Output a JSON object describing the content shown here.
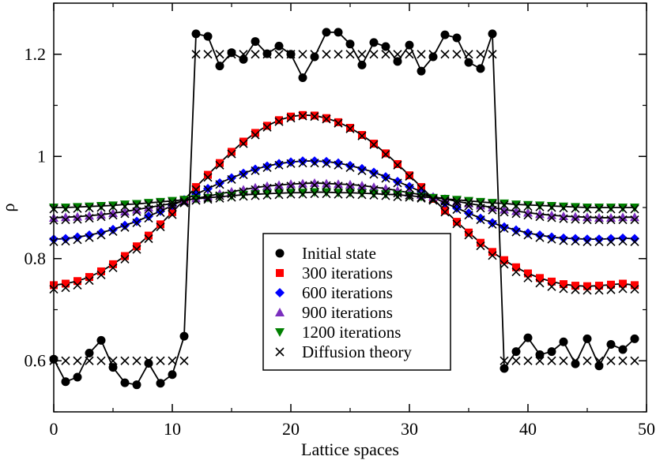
{
  "chart_data": {
    "type": "line",
    "title": "",
    "xlabel": "Lattice spaces",
    "ylabel": "ρ",
    "xlim": [
      0,
      50
    ],
    "ylim": [
      0.5,
      1.3
    ],
    "xticks": [
      0,
      10,
      20,
      30,
      40,
      50
    ],
    "xtick_labels": [
      "0",
      "10",
      "20",
      "30",
      "40",
      "50"
    ],
    "yticks": [
      0.6,
      0.8,
      1.0,
      1.2
    ],
    "ytick_labels": [
      "0.6",
      "0.8",
      "1",
      "1.2"
    ],
    "grid": false,
    "legend_position": "center-bottom",
    "x": [
      0,
      1,
      2,
      3,
      4,
      5,
      6,
      7,
      8,
      9,
      10,
      11,
      12,
      13,
      14,
      15,
      16,
      17,
      18,
      19,
      20,
      21,
      22,
      23,
      24,
      25,
      26,
      27,
      28,
      29,
      30,
      31,
      32,
      33,
      34,
      35,
      36,
      37,
      38,
      39,
      40,
      41,
      42,
      43,
      44,
      45,
      46,
      47,
      48,
      49
    ],
    "series": [
      {
        "name": "Initial state",
        "marker": "circle",
        "color": "#000000",
        "line": true,
        "values": [
          0.603,
          0.559,
          0.568,
          0.615,
          0.64,
          0.587,
          0.557,
          0.553,
          0.595,
          0.556,
          0.573,
          0.648,
          1.24,
          1.235,
          1.177,
          1.203,
          1.19,
          1.225,
          1.201,
          1.216,
          1.2,
          1.154,
          1.195,
          1.243,
          1.243,
          1.22,
          1.179,
          1.223,
          1.215,
          1.186,
          1.218,
          1.167,
          1.195,
          1.238,
          1.232,
          1.184,
          1.172,
          1.24,
          0.585,
          0.618,
          0.645,
          0.612,
          0.618,
          0.637,
          0.594,
          0.643,
          0.59,
          0.632,
          0.622,
          0.643
        ]
      },
      {
        "name": "300 iterations",
        "marker": "square",
        "color": "#ff0000",
        "line": true,
        "values": [
          0.748,
          0.751,
          0.756,
          0.764,
          0.775,
          0.789,
          0.805,
          0.824,
          0.845,
          0.867,
          0.891,
          0.915,
          0.94,
          0.964,
          0.987,
          1.009,
          1.029,
          1.046,
          1.06,
          1.071,
          1.078,
          1.081,
          1.08,
          1.075,
          1.067,
          1.056,
          1.042,
          1.025,
          1.006,
          0.985,
          0.963,
          0.94,
          0.917,
          0.894,
          0.872,
          0.851,
          0.831,
          0.813,
          0.797,
          0.783,
          0.771,
          0.762,
          0.755,
          0.75,
          0.747,
          0.746,
          0.747,
          0.749,
          0.751,
          0.748
        ]
      },
      {
        "name": "600 iterations",
        "marker": "diamond",
        "color": "#0000ff",
        "line": true,
        "values": [
          0.838,
          0.839,
          0.842,
          0.846,
          0.851,
          0.857,
          0.865,
          0.873,
          0.883,
          0.893,
          0.904,
          0.915,
          0.926,
          0.937,
          0.948,
          0.958,
          0.967,
          0.975,
          0.981,
          0.986,
          0.989,
          0.991,
          0.991,
          0.99,
          0.987,
          0.982,
          0.976,
          0.969,
          0.96,
          0.951,
          0.941,
          0.931,
          0.92,
          0.909,
          0.899,
          0.889,
          0.879,
          0.87,
          0.862,
          0.856,
          0.85,
          0.846,
          0.842,
          0.84,
          0.839,
          0.838,
          0.838,
          0.839,
          0.84,
          0.839
        ]
      },
      {
        "name": "900 iterations",
        "marker": "triangle-up",
        "color": "#7b2fbe",
        "line": true,
        "values": [
          0.88,
          0.881,
          0.882,
          0.884,
          0.886,
          0.889,
          0.892,
          0.896,
          0.9,
          0.904,
          0.908,
          0.913,
          0.918,
          0.922,
          0.927,
          0.931,
          0.935,
          0.939,
          0.942,
          0.944,
          0.946,
          0.947,
          0.948,
          0.947,
          0.946,
          0.945,
          0.943,
          0.94,
          0.937,
          0.933,
          0.929,
          0.925,
          0.921,
          0.917,
          0.912,
          0.908,
          0.904,
          0.9,
          0.896,
          0.893,
          0.89,
          0.887,
          0.885,
          0.883,
          0.882,
          0.881,
          0.88,
          0.88,
          0.881,
          0.881
        ]
      },
      {
        "name": "1200 iterations",
        "marker": "triangle-down",
        "color": "#008000",
        "line": true,
        "values": [
          0.9,
          0.9,
          0.901,
          0.902,
          0.903,
          0.904,
          0.906,
          0.907,
          0.909,
          0.911,
          0.913,
          0.915,
          0.917,
          0.919,
          0.921,
          0.923,
          0.925,
          0.926,
          0.927,
          0.928,
          0.929,
          0.929,
          0.93,
          0.93,
          0.929,
          0.929,
          0.928,
          0.927,
          0.926,
          0.925,
          0.923,
          0.921,
          0.919,
          0.917,
          0.915,
          0.913,
          0.911,
          0.909,
          0.908,
          0.906,
          0.905,
          0.904,
          0.903,
          0.902,
          0.901,
          0.9,
          0.9,
          0.9,
          0.9,
          0.9
        ]
      },
      {
        "name": "Diffusion theory",
        "marker": "x",
        "color": "#000000",
        "line": false,
        "values": [
          0.6,
          0.6,
          0.6,
          0.6,
          0.6,
          0.6,
          0.6,
          0.6,
          0.6,
          0.6,
          0.6,
          0.6,
          1.2,
          1.2,
          1.2,
          1.2,
          1.2,
          1.2,
          1.2,
          1.2,
          1.2,
          1.2,
          1.2,
          1.2,
          1.2,
          1.2,
          1.2,
          1.2,
          1.2,
          1.2,
          1.2,
          1.2,
          1.2,
          1.2,
          1.2,
          1.2,
          1.2,
          1.2,
          0.6,
          0.6,
          0.6,
          0.6,
          0.6,
          0.6,
          0.6,
          0.6,
          0.6,
          0.6,
          0.6,
          0.6
        ],
        "extra_curves": [
          [
            0.74,
            0.743,
            0.748,
            0.757,
            0.768,
            0.782,
            0.799,
            0.818,
            0.839,
            0.862,
            0.886,
            0.91,
            0.935,
            0.959,
            0.983,
            1.005,
            1.025,
            1.042,
            1.057,
            1.068,
            1.075,
            1.079,
            1.078,
            1.073,
            1.065,
            1.054,
            1.04,
            1.023,
            1.004,
            0.983,
            0.961,
            0.938,
            0.914,
            0.891,
            0.868,
            0.846,
            0.825,
            0.806,
            0.789,
            0.774,
            0.762,
            0.752,
            0.745,
            0.741,
            0.739,
            0.738,
            0.738,
            0.739,
            0.741,
            0.74
          ],
          [
            0.833,
            0.834,
            0.837,
            0.841,
            0.846,
            0.853,
            0.861,
            0.87,
            0.879,
            0.89,
            0.901,
            0.912,
            0.924,
            0.935,
            0.945,
            0.955,
            0.964,
            0.972,
            0.978,
            0.983,
            0.986,
            0.987,
            0.987,
            0.986,
            0.983,
            0.978,
            0.972,
            0.965,
            0.957,
            0.948,
            0.938,
            0.927,
            0.917,
            0.906,
            0.896,
            0.885,
            0.876,
            0.867,
            0.859,
            0.852,
            0.846,
            0.841,
            0.838,
            0.835,
            0.834,
            0.833,
            0.833,
            0.833,
            0.834,
            0.833
          ],
          [
            0.875,
            0.876,
            0.877,
            0.879,
            0.882,
            0.885,
            0.888,
            0.892,
            0.896,
            0.9,
            0.905,
            0.909,
            0.914,
            0.919,
            0.923,
            0.927,
            0.931,
            0.935,
            0.938,
            0.94,
            0.942,
            0.943,
            0.944,
            0.943,
            0.942,
            0.94,
            0.938,
            0.935,
            0.932,
            0.928,
            0.924,
            0.92,
            0.916,
            0.912,
            0.907,
            0.903,
            0.899,
            0.895,
            0.891,
            0.888,
            0.885,
            0.882,
            0.88,
            0.878,
            0.877,
            0.876,
            0.876,
            0.876,
            0.876,
            0.876
          ],
          [
            0.897,
            0.897,
            0.898,
            0.899,
            0.9,
            0.901,
            0.902,
            0.904,
            0.906,
            0.908,
            0.91,
            0.912,
            0.914,
            0.916,
            0.918,
            0.92,
            0.922,
            0.923,
            0.924,
            0.925,
            0.926,
            0.926,
            0.927,
            0.927,
            0.926,
            0.926,
            0.925,
            0.924,
            0.923,
            0.921,
            0.92,
            0.918,
            0.916,
            0.914,
            0.912,
            0.91,
            0.908,
            0.906,
            0.905,
            0.903,
            0.902,
            0.901,
            0.9,
            0.899,
            0.898,
            0.897,
            0.897,
            0.897,
            0.897,
            0.897
          ]
        ]
      }
    ]
  }
}
